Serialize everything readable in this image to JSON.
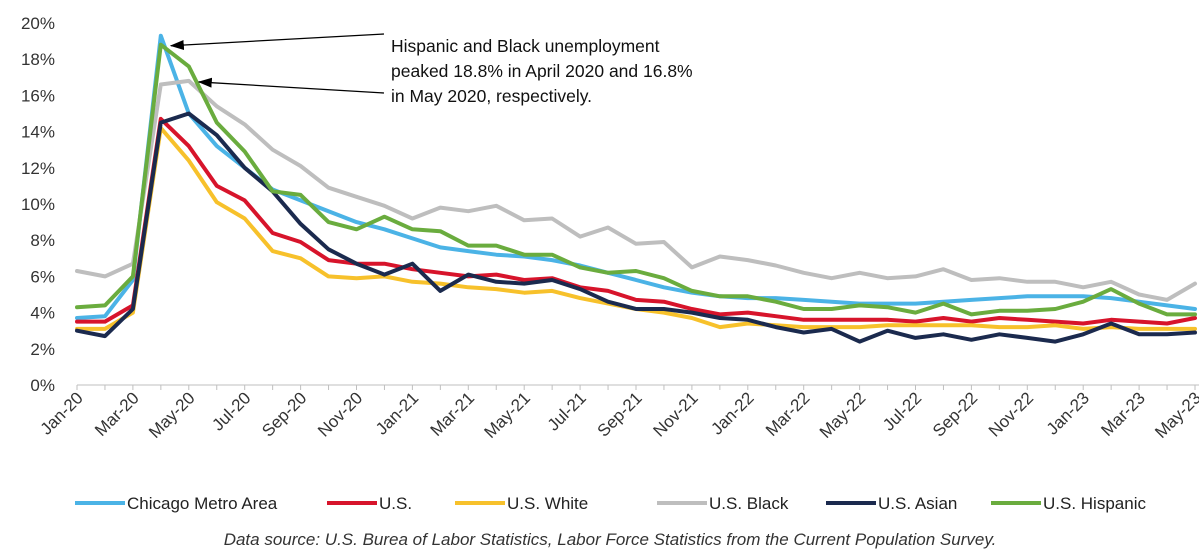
{
  "chart_data": {
    "type": "line",
    "title": "",
    "xlabel": "",
    "ylabel": "",
    "ylim": [
      0,
      20
    ],
    "y_ticks": [
      "0%",
      "2%",
      "4%",
      "6%",
      "8%",
      "10%",
      "12%",
      "14%",
      "16%",
      "18%",
      "20%"
    ],
    "x_tick_labels": [
      "Jan-20",
      "Mar-20",
      "May-20",
      "Jul-20",
      "Sep-20",
      "Nov-20",
      "Jan-21",
      "Mar-21",
      "May-21",
      "Jul-21",
      "Sep-21",
      "Nov-21",
      "Jan-22",
      "Mar-22",
      "May-22",
      "Jul-22",
      "Sep-22",
      "Nov-22",
      "Jan-23",
      "Mar-23",
      "May-23"
    ],
    "x": [
      "Jan-20",
      "Feb-20",
      "Mar-20",
      "Apr-20",
      "May-20",
      "Jun-20",
      "Jul-20",
      "Aug-20",
      "Sep-20",
      "Oct-20",
      "Nov-20",
      "Dec-20",
      "Jan-21",
      "Feb-21",
      "Mar-21",
      "Apr-21",
      "May-21",
      "Jun-21",
      "Jul-21",
      "Aug-21",
      "Sep-21",
      "Oct-21",
      "Nov-21",
      "Dec-21",
      "Jan-22",
      "Feb-22",
      "Mar-22",
      "Apr-22",
      "May-22",
      "Jun-22",
      "Jul-22",
      "Aug-22",
      "Sep-22",
      "Oct-22",
      "Nov-22",
      "Dec-22",
      "Jan-23",
      "Feb-23",
      "Mar-23",
      "Apr-23",
      "May-23"
    ],
    "grid": false,
    "legend_position": "bottom",
    "series": [
      {
        "name": "Chicago Metro Area",
        "color": "#4BB3E6",
        "values": [
          3.7,
          3.8,
          5.8,
          19.3,
          15.0,
          13.2,
          12.0,
          10.8,
          10.2,
          9.6,
          9.0,
          8.6,
          8.1,
          7.6,
          7.4,
          7.2,
          7.1,
          6.9,
          6.6,
          6.2,
          5.8,
          5.4,
          5.1,
          4.9,
          4.8,
          4.8,
          4.7,
          4.6,
          4.5,
          4.5,
          4.5,
          4.6,
          4.7,
          4.8,
          4.9,
          4.9,
          4.9,
          4.8,
          4.6,
          4.4,
          4.2
        ]
      },
      {
        "name": "U.S.",
        "color": "#D7142B",
        "values": [
          3.5,
          3.5,
          4.4,
          14.7,
          13.2,
          11.0,
          10.2,
          8.4,
          7.9,
          6.9,
          6.7,
          6.7,
          6.4,
          6.2,
          6.0,
          6.1,
          5.8,
          5.9,
          5.4,
          5.2,
          4.7,
          4.6,
          4.2,
          3.9,
          4.0,
          3.8,
          3.6,
          3.6,
          3.6,
          3.6,
          3.5,
          3.7,
          3.5,
          3.7,
          3.6,
          3.5,
          3.4,
          3.6,
          3.5,
          3.4,
          3.7
        ]
      },
      {
        "name": "U.S. White",
        "color": "#F7C12B",
        "values": [
          3.1,
          3.1,
          4.0,
          14.2,
          12.4,
          10.1,
          9.2,
          7.4,
          7.0,
          6.0,
          5.9,
          6.0,
          5.7,
          5.6,
          5.4,
          5.3,
          5.1,
          5.2,
          4.8,
          4.5,
          4.2,
          4.0,
          3.7,
          3.2,
          3.4,
          3.3,
          3.2,
          3.2,
          3.2,
          3.3,
          3.3,
          3.3,
          3.3,
          3.2,
          3.2,
          3.3,
          3.1,
          3.2,
          3.1,
          3.1,
          3.1
        ]
      },
      {
        "name": "U.S. Black",
        "color": "#BEBEBE",
        "values": [
          6.3,
          6.0,
          6.7,
          16.6,
          16.8,
          15.4,
          14.4,
          13.0,
          12.1,
          10.9,
          10.4,
          9.9,
          9.2,
          9.8,
          9.6,
          9.9,
          9.1,
          9.2,
          8.2,
          8.7,
          7.8,
          7.9,
          6.5,
          7.1,
          6.9,
          6.6,
          6.2,
          5.9,
          6.2,
          5.9,
          6.0,
          6.4,
          5.8,
          5.9,
          5.7,
          5.7,
          5.4,
          5.7,
          5.0,
          4.7,
          5.6
        ]
      },
      {
        "name": "U.S. Asian",
        "color": "#1B2A4E",
        "values": [
          3.0,
          2.7,
          4.2,
          14.5,
          15.0,
          13.8,
          12.0,
          10.7,
          8.9,
          7.5,
          6.7,
          6.1,
          6.7,
          5.2,
          6.1,
          5.7,
          5.6,
          5.8,
          5.3,
          4.6,
          4.2,
          4.2,
          4.0,
          3.7,
          3.6,
          3.2,
          2.9,
          3.1,
          2.4,
          3.0,
          2.6,
          2.8,
          2.5,
          2.8,
          2.6,
          2.4,
          2.8,
          3.4,
          2.8,
          2.8,
          2.9
        ]
      },
      {
        "name": "U.S. Hispanic",
        "color": "#6AAC3E",
        "values": [
          4.3,
          4.4,
          6.0,
          18.8,
          17.6,
          14.5,
          12.9,
          10.7,
          10.5,
          9.0,
          8.6,
          9.3,
          8.6,
          8.5,
          7.7,
          7.7,
          7.2,
          7.2,
          6.5,
          6.2,
          6.3,
          5.9,
          5.2,
          4.9,
          4.9,
          4.6,
          4.2,
          4.2,
          4.4,
          4.3,
          4.0,
          4.5,
          3.9,
          4.1,
          4.1,
          4.2,
          4.6,
          5.3,
          4.5,
          3.9,
          3.9
        ]
      }
    ],
    "annotation": {
      "lines": [
        "Hispanic and Black unemployment",
        "peaked 18.8% in April 2020 and 16.8%",
        "in May 2020, respectively."
      ],
      "arrow_targets": [
        {
          "series": "U.S. Hispanic",
          "x": "Apr-20"
        },
        {
          "series": "U.S. Black",
          "x": "May-20"
        }
      ]
    },
    "source_note": "Data source: U.S. Burea of Labor Statistics, Labor Force Statistics from the Current Population Survey."
  }
}
